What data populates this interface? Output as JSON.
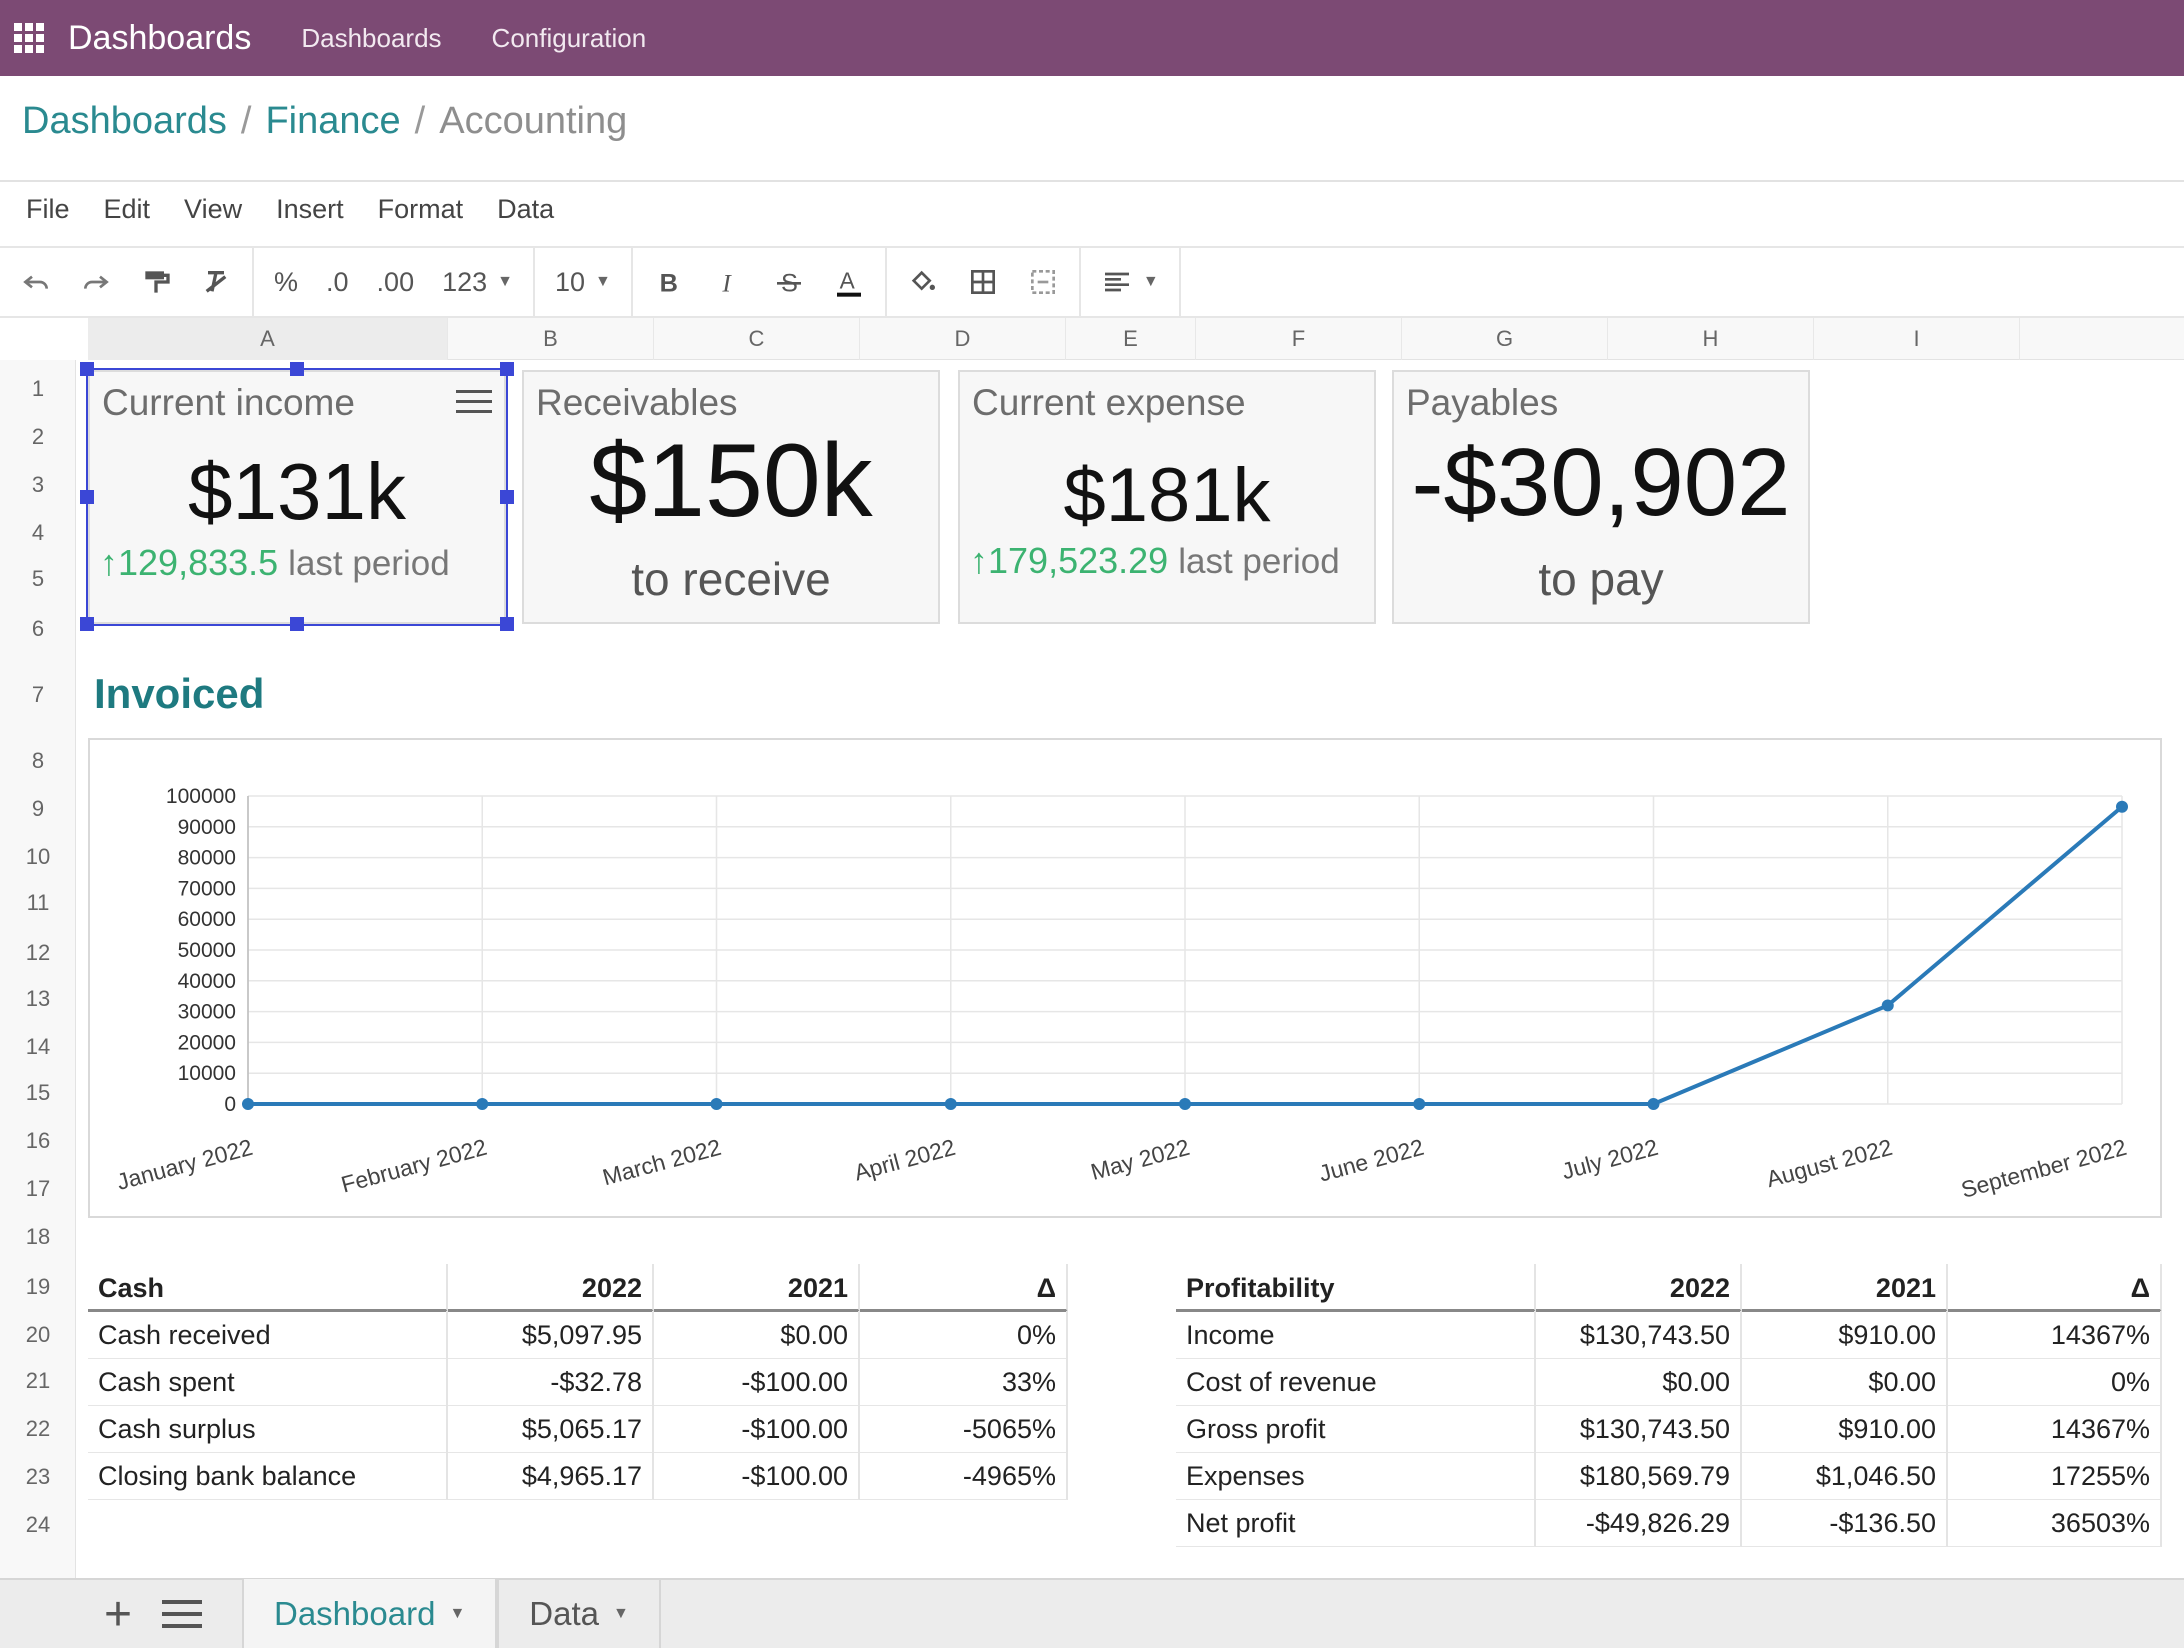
{
  "topbar": {
    "app_title": "Dashboards",
    "nav": [
      "Dashboards",
      "Configuration"
    ],
    "bg_color": "#7c4a74"
  },
  "breadcrumb": {
    "items": [
      "Dashboards",
      "Finance"
    ],
    "current": "Accounting"
  },
  "menubar": [
    "File",
    "Edit",
    "View",
    "Insert",
    "Format",
    "Data"
  ],
  "toolbar": {
    "format_percent": "%",
    "format_dec_less": ".0",
    "format_dec_more": ".00",
    "format_more": "123",
    "font_size": "10"
  },
  "columns": [
    "A",
    "B",
    "C",
    "D",
    "E",
    "F",
    "G",
    "H",
    "I"
  ],
  "rows": [
    "1",
    "2",
    "3",
    "4",
    "5",
    "6",
    "7",
    "8",
    "9",
    "10",
    "11",
    "12",
    "13",
    "14",
    "15",
    "16",
    "17",
    "18",
    "19",
    "20",
    "21",
    "22",
    "23",
    "24"
  ],
  "scorecards": [
    {
      "title": "Current income",
      "value": "$131k",
      "delta_value": "129,833.5",
      "delta_label": "last period"
    },
    {
      "title": "Receivables",
      "value": "$150k",
      "subtitle": "to receive"
    },
    {
      "title": "Current expense",
      "value": "$181k",
      "delta_value": "179,523.29",
      "delta_label": "last period"
    },
    {
      "title": "Payables",
      "value": "-$30,902",
      "subtitle": "to pay"
    }
  ],
  "section_title": "Invoiced",
  "chart_data": {
    "type": "line",
    "categories": [
      "January 2022",
      "February 2022",
      "March 2022",
      "April 2022",
      "May 2022",
      "June 2022",
      "July 2022",
      "August 2022",
      "September 2022"
    ],
    "values": [
      0,
      0,
      0,
      0,
      0,
      0,
      0,
      32000,
      96500
    ],
    "ylim": [
      0,
      100000
    ],
    "yticks": [
      0,
      10000,
      20000,
      30000,
      40000,
      50000,
      60000,
      70000,
      80000,
      90000,
      100000
    ],
    "grid": true,
    "line_color": "#2a7ab8"
  },
  "cash_table": {
    "headers": [
      "Cash",
      "2022",
      "2021",
      "Δ"
    ],
    "rows": [
      [
        "Cash received",
        "$5,097.95",
        "$0.00",
        "0%"
      ],
      [
        "Cash spent",
        "-$32.78",
        "-$100.00",
        "33%"
      ],
      [
        "Cash surplus",
        "$5,065.17",
        "-$100.00",
        "-5065%"
      ],
      [
        "Closing bank balance",
        "$4,965.17",
        "-$100.00",
        "-4965%"
      ]
    ]
  },
  "profit_table": {
    "headers": [
      "Profitability",
      "2022",
      "2021",
      "Δ"
    ],
    "rows": [
      [
        "Income",
        "$130,743.50",
        "$910.00",
        "14367%"
      ],
      [
        "Cost of revenue",
        "$0.00",
        "$0.00",
        "0%"
      ],
      [
        "Gross profit",
        "$130,743.50",
        "$910.00",
        "14367%"
      ],
      [
        "Expenses",
        "$180,569.79",
        "$1,046.50",
        "17255%"
      ],
      [
        "Net profit",
        "-$49,826.29",
        "-$136.50",
        "36503%"
      ]
    ]
  },
  "sheets": {
    "add": "+",
    "tabs": [
      "Dashboard",
      "Data"
    ]
  }
}
